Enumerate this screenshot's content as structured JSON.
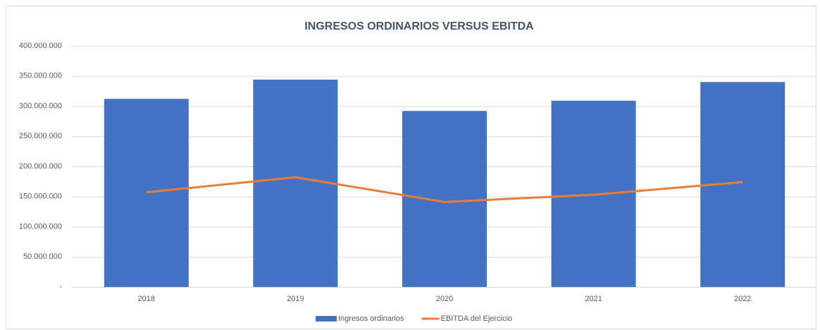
{
  "chart_data": {
    "type": "bar",
    "title": "INGRESOS ORDINARIOS VERSUS EBITDA",
    "categories": [
      "2018",
      "2019",
      "2020",
      "2021",
      "2022"
    ],
    "series": [
      {
        "name": "Ingresos ordinarios",
        "type": "bar",
        "color": "#4472c4",
        "values": [
          312000000,
          344000000,
          292000000,
          309000000,
          340000000
        ]
      },
      {
        "name": "EBITDA del Ejercicio",
        "type": "line",
        "color": "#ed7d31",
        "values": [
          157000000,
          182000000,
          141000000,
          153000000,
          174000000
        ]
      }
    ],
    "ylim": [
      0,
      400000000
    ],
    "yticks": [
      {
        "value": 0,
        "label": "-"
      },
      {
        "value": 50000000,
        "label": "50.000.000"
      },
      {
        "value": 100000000,
        "label": "100.000.000"
      },
      {
        "value": 150000000,
        "label": "150.000.000"
      },
      {
        "value": 200000000,
        "label": "200.000.000"
      },
      {
        "value": 250000000,
        "label": "250.000.000"
      },
      {
        "value": 300000000,
        "label": "300.000.000"
      },
      {
        "value": 350000000,
        "label": "350.000.000"
      },
      {
        "value": 400000000,
        "label": "400.000.000"
      }
    ],
    "grid": true,
    "legend": "bottom"
  }
}
